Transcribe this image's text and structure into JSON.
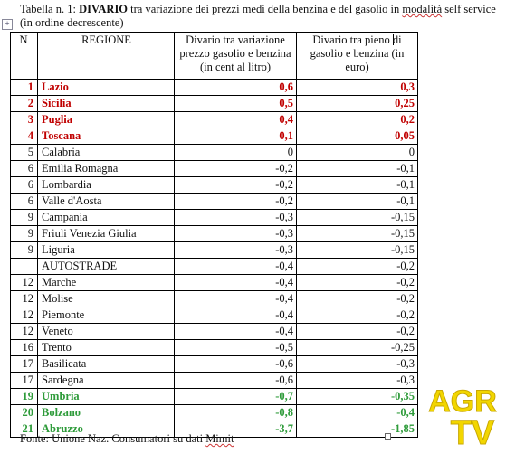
{
  "caption": {
    "prefix": "Tabella n. 1: ",
    "highlight": "DIVARIO",
    "rest_a": " tra variazione dei prezzi medi della benzina e del gasolio in ",
    "squiggled": "modalità",
    "rest_b": " self service",
    "line2": "(in ordine decrescente)"
  },
  "table": {
    "headers": {
      "n": "N",
      "region": "REGIONE",
      "price_diff": "Divario tra variazione prezzo gasolio e benzina (in cent al litro)",
      "tank_diff": "Divario tra pieno di gasolio e benzina (in euro)"
    },
    "rows": [
      {
        "n": "1",
        "region": "Lazio",
        "price": "0,6",
        "tank": "0,3",
        "style": "red"
      },
      {
        "n": "2",
        "region": "Sicilia",
        "price": "0,5",
        "tank": "0,25",
        "style": "red"
      },
      {
        "n": "3",
        "region": "Puglia",
        "price": "0,4",
        "tank": "0,2",
        "style": "red"
      },
      {
        "n": "4",
        "region": "Toscana",
        "price": "0,1",
        "tank": "0,05",
        "style": "red"
      },
      {
        "n": "5",
        "region": "Calabria",
        "price": "0",
        "tank": "0",
        "style": ""
      },
      {
        "n": "6",
        "region": "Emilia Romagna",
        "price": "-0,2",
        "tank": "-0,1",
        "style": ""
      },
      {
        "n": "6",
        "region": "Lombardia",
        "price": "-0,2",
        "tank": "-0,1",
        "style": ""
      },
      {
        "n": "6",
        "region": "Valle d'Aosta",
        "price": "-0,2",
        "tank": "-0,1",
        "style": ""
      },
      {
        "n": "9",
        "region": "Campania",
        "price": "-0,3",
        "tank": "-0,15",
        "style": ""
      },
      {
        "n": "9",
        "region": "Friuli Venezia Giulia",
        "price": "-0,3",
        "tank": "-0,15",
        "style": ""
      },
      {
        "n": "9",
        "region": "Liguria",
        "price": "-0,3",
        "tank": "-0,15",
        "style": ""
      },
      {
        "n": "",
        "region": "AUTOSTRADE",
        "price": "-0,4",
        "tank": "-0,2",
        "style": ""
      },
      {
        "n": "12",
        "region": "Marche",
        "price": "-0,4",
        "tank": "-0,2",
        "style": ""
      },
      {
        "n": "12",
        "region": "Molise",
        "price": "-0,4",
        "tank": "-0,2",
        "style": ""
      },
      {
        "n": "12",
        "region": "Piemonte",
        "price": "-0,4",
        "tank": "-0,2",
        "style": ""
      },
      {
        "n": "12",
        "region": "Veneto",
        "price": "-0,4",
        "tank": "-0,2",
        "style": ""
      },
      {
        "n": "16",
        "region": "Trento",
        "price": "-0,5",
        "tank": "-0,25",
        "style": ""
      },
      {
        "n": "17",
        "region": "Basilicata",
        "price": "-0,6",
        "tank": "-0,3",
        "style": ""
      },
      {
        "n": "17",
        "region": "Sardegna",
        "price": "-0,6",
        "tank": "-0,3",
        "style": ""
      },
      {
        "n": "19",
        "region": "Umbria",
        "price": "-0,7",
        "tank": "-0,35",
        "style": "green"
      },
      {
        "n": "20",
        "region": "Bolzano",
        "price": "-0,8",
        "tank": "-0,4",
        "style": "green"
      },
      {
        "n": "21",
        "region": "Abruzzo",
        "price": "-3,7",
        "tank": "-1,85",
        "style": "green"
      }
    ]
  },
  "source": {
    "prefix": "Fonte: Unione Naz. Consumatori su dati ",
    "squiggled": "Mimit"
  },
  "logo": {
    "line1": "AGR",
    "line2": "TV",
    "color": "#f2d600"
  },
  "icons": {
    "move_handle": "move-handle-icon"
  },
  "colors": {
    "red": "#c00000",
    "green": "#2e9b3a"
  }
}
